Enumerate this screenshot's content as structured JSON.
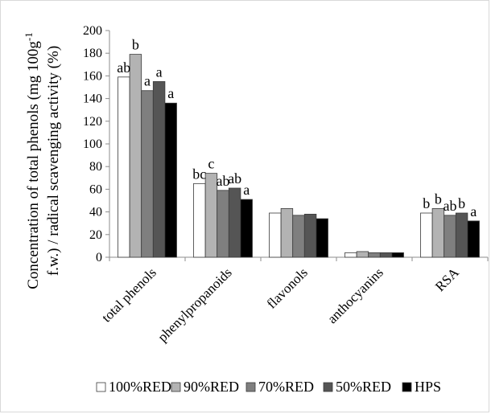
{
  "chart_data": {
    "type": "bar",
    "title": "",
    "xlabel": "",
    "ylabel_line1": "Concentration of total phenols (mg 100g",
    "ylabel_sup": "-1",
    "ylabel_line2": "f.w.) / radical scavenging activity (%)",
    "ylim": [
      0,
      200
    ],
    "yticks": [
      0,
      20,
      40,
      60,
      80,
      100,
      120,
      140,
      160,
      180,
      200
    ],
    "grid": false,
    "legend_position": "bottom",
    "categories": [
      "total phenols",
      "phenylpropanoids",
      "flavonols",
      "anthocyanins",
      "RSA"
    ],
    "series": [
      {
        "name": "100%RED",
        "color": "#ffffff",
        "values": [
          159,
          65,
          39,
          4,
          39
        ]
      },
      {
        "name": "90%RED",
        "color": "#b3b3b3",
        "values": [
          179,
          74,
          43,
          5,
          43
        ]
      },
      {
        "name": "70%RED",
        "color": "#7f7f7f",
        "values": [
          147,
          59,
          37,
          4,
          37
        ]
      },
      {
        "name": "50%RED",
        "color": "#555555",
        "values": [
          155,
          61,
          38,
          4,
          39
        ]
      },
      {
        "name": "HPS",
        "color": "#000000",
        "values": [
          136,
          51,
          34,
          4,
          32
        ]
      }
    ],
    "annotations": [
      {
        "category": 0,
        "series": 0,
        "text": "ab"
      },
      {
        "category": 0,
        "series": 1,
        "text": "b"
      },
      {
        "category": 0,
        "series": 2,
        "text": "a"
      },
      {
        "category": 0,
        "series": 3,
        "text": "a"
      },
      {
        "category": 0,
        "series": 4,
        "text": "a"
      },
      {
        "category": 1,
        "series": 0,
        "text": "bc"
      },
      {
        "category": 1,
        "series": 1,
        "text": "c"
      },
      {
        "category": 1,
        "series": 2,
        "text": "ab"
      },
      {
        "category": 1,
        "series": 3,
        "text": "ab"
      },
      {
        "category": 1,
        "series": 4,
        "text": "a"
      },
      {
        "category": 4,
        "series": 0,
        "text": "b"
      },
      {
        "category": 4,
        "series": 1,
        "text": "b"
      },
      {
        "category": 4,
        "series": 2,
        "text": "ab"
      },
      {
        "category": 4,
        "series": 3,
        "text": "b"
      },
      {
        "category": 4,
        "series": 4,
        "text": "a"
      }
    ]
  }
}
